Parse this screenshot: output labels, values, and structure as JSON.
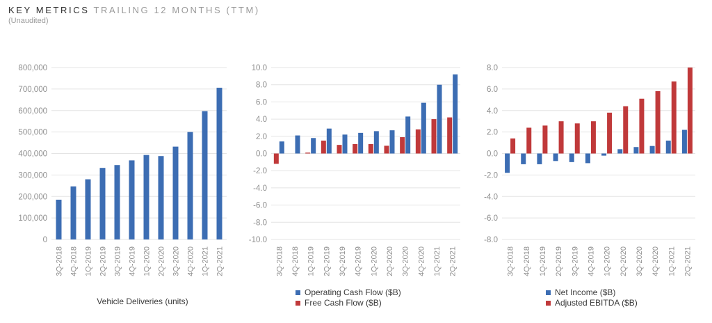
{
  "header": {
    "title_strong": "KEY METRICS",
    "title_light": "TRAILING 12 MONTHS (TTM)",
    "subtitle": "(Unaudited)"
  },
  "colors": {
    "blue": "#3c6db3",
    "red": "#c0393a",
    "grid": "#e4e4e4",
    "axis_text": "#8f8f8f"
  },
  "chart_data": [
    {
      "type": "bar",
      "xlabel": "Vehicle Deliveries (units)",
      "ylabel": "",
      "ylim": [
        0,
        800000
      ],
      "yticks": [
        "0",
        "100,000",
        "200,000",
        "300,000",
        "400,000",
        "500,000",
        "600,000",
        "700,000",
        "800,000"
      ],
      "categories": [
        "3Q-2018",
        "4Q-2018",
        "1Q-2019",
        "2Q-2019",
        "3Q-2019",
        "4Q-2019",
        "1Q-2020",
        "2Q-2020",
        "3Q-2020",
        "4Q-2020",
        "1Q-2021",
        "2Q-2021"
      ],
      "series": [
        {
          "values": [
            185000,
            247000,
            280000,
            333000,
            346000,
            368000,
            393000,
            388000,
            432000,
            500000,
            597000,
            706000
          ],
          "color": "#3c6db3"
        }
      ],
      "legend": []
    },
    {
      "type": "bar",
      "xlabel": "",
      "ylabel": "",
      "ylim": [
        -10,
        10
      ],
      "yticks": [
        "-10.0",
        "-8.0",
        "-6.0",
        "-4.0",
        "-2.0",
        "0.0",
        "2.0",
        "4.0",
        "6.0",
        "8.0",
        "10.0"
      ],
      "categories": [
        "3Q-2018",
        "4Q-2018",
        "1Q-2019",
        "2Q-2019",
        "3Q-2019",
        "4Q-2019",
        "1Q-2020",
        "2Q-2020",
        "3Q-2020",
        "4Q-2020",
        "1Q-2021",
        "2Q-2021"
      ],
      "series": [
        {
          "name": "Free Cash Flow ($B)",
          "values": [
            -1.2,
            0.0,
            0.1,
            1.5,
            1.0,
            1.1,
            1.1,
            0.9,
            1.9,
            2.8,
            4.0,
            4.2
          ],
          "color": "#c0393a"
        },
        {
          "name": "Operating Cash Flow ($B)",
          "values": [
            1.4,
            2.1,
            1.8,
            2.9,
            2.2,
            2.4,
            2.6,
            2.7,
            4.3,
            5.9,
            8.0,
            9.2
          ],
          "color": "#3c6db3"
        }
      ],
      "legend": [
        {
          "name": "Operating Cash Flow ($B)",
          "color": "#3c6db3"
        },
        {
          "name": "Free Cash Flow ($B)",
          "color": "#c0393a"
        }
      ]
    },
    {
      "type": "bar",
      "xlabel": "",
      "ylabel": "",
      "ylim": [
        -8,
        8
      ],
      "yticks": [
        "-8.0",
        "-6.0",
        "-4.0",
        "-2.0",
        "0.0",
        "2.0",
        "4.0",
        "6.0",
        "8.0"
      ],
      "categories": [
        "3Q-2018",
        "4Q-2018",
        "1Q-2019",
        "2Q-2019",
        "3Q-2019",
        "4Q-2019",
        "1Q-2020",
        "2Q-2020",
        "3Q-2020",
        "4Q-2020",
        "1Q-2021",
        "2Q-2021"
      ],
      "series": [
        {
          "name": "Net Income ($B)",
          "values": [
            -1.8,
            -1.0,
            -1.0,
            -0.7,
            -0.8,
            -0.9,
            -0.2,
            0.4,
            0.6,
            0.7,
            1.2,
            2.2
          ],
          "color": "#3c6db3"
        },
        {
          "name": "Adjusted EBITDA ($B)",
          "values": [
            1.4,
            2.4,
            2.6,
            3.0,
            2.8,
            3.0,
            3.8,
            4.4,
            5.1,
            5.8,
            6.7,
            8.0
          ],
          "color": "#c0393a"
        }
      ],
      "legend": [
        {
          "name": "Net Income ($B)",
          "color": "#3c6db3"
        },
        {
          "name": "Adjusted EBITDA ($B)",
          "color": "#c0393a"
        }
      ]
    }
  ]
}
